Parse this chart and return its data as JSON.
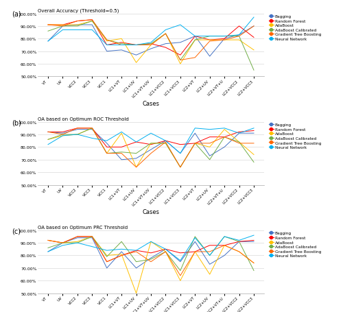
{
  "cases": [
    "VT",
    "UV",
    "VCC2",
    "VCC3",
    "VCC1",
    "LC1+VT",
    "LC1+UV",
    "LC1+VT+UV",
    "LC1+VCC2",
    "LC1+VCC3",
    "LC2+VT",
    "LC2+UV",
    "LC2+VT+U",
    "LC2+VCC2",
    "LC2+VCC3"
  ],
  "subplot_titles": [
    "Overall Accuracy (Threshold=0.5)",
    "OA based on Optimum ROC Threshold",
    "OA based on Optimum PRC Threshold"
  ],
  "subplot_labels": [
    "(a)",
    "(b)",
    "(c)"
  ],
  "legend_labels": [
    "Bagging",
    "Random Forest",
    "AdaBoost",
    "AdaBoost Calibrated",
    "Gradient Tree Boosting",
    "Neural Network"
  ],
  "colors": [
    "#4472C4",
    "#FF0000",
    "#FFC000",
    "#70AD47",
    "#FF6600",
    "#00B0F0"
  ],
  "xlabel": "Cases",
  "ylim": [
    0.5,
    1.0
  ],
  "yticks": [
    0.5,
    0.6,
    0.7,
    0.8,
    0.9,
    1.0
  ],
  "ytick_labels": [
    "50.00%",
    "60.00%",
    "70.00%",
    "80.00%",
    "90.00%",
    "100.00%"
  ],
  "data_a": {
    "Bagging": [
      0.78,
      0.9,
      0.91,
      0.91,
      0.7,
      0.71,
      0.67,
      0.72,
      0.76,
      0.77,
      0.82,
      0.66,
      0.8,
      0.83,
      0.9
    ],
    "Random Forest": [
      0.91,
      0.91,
      0.94,
      0.95,
      0.75,
      0.77,
      0.75,
      0.76,
      0.73,
      0.67,
      0.82,
      0.79,
      0.8,
      0.9,
      0.81
    ],
    "AdaBoost": [
      0.91,
      0.91,
      0.91,
      0.94,
      0.78,
      0.8,
      0.61,
      0.75,
      0.84,
      0.6,
      0.79,
      0.79,
      0.79,
      0.79,
      0.71
    ],
    "AdaBoost Calibrated": [
      0.86,
      0.9,
      0.9,
      0.94,
      0.79,
      0.76,
      0.75,
      0.76,
      0.84,
      0.63,
      0.79,
      0.82,
      0.82,
      0.82,
      0.55
    ],
    "Gradient Tree Boosting": [
      0.91,
      0.9,
      0.94,
      0.95,
      0.79,
      0.75,
      0.75,
      0.75,
      0.84,
      0.63,
      0.65,
      0.78,
      0.79,
      0.82,
      0.9
    ],
    "Neural Network": [
      0.78,
      0.87,
      0.87,
      0.87,
      0.75,
      0.75,
      0.75,
      0.77,
      0.87,
      0.91,
      0.82,
      0.82,
      0.82,
      0.83,
      0.97
    ]
  },
  "data_b": {
    "Bagging": [
      0.92,
      0.91,
      0.94,
      0.94,
      0.83,
      0.7,
      0.71,
      0.78,
      0.85,
      0.75,
      0.91,
      0.73,
      0.8,
      0.91,
      0.91
    ],
    "Random Forest": [
      0.92,
      0.92,
      0.95,
      0.95,
      0.8,
      0.8,
      0.84,
      0.82,
      0.85,
      0.82,
      0.83,
      0.88,
      0.88,
      0.92,
      0.93
    ],
    "AdaBoost": [
      0.86,
      0.89,
      0.9,
      0.95,
      0.75,
      0.91,
      0.64,
      0.83,
      0.83,
      0.64,
      0.83,
      0.8,
      0.94,
      0.84,
      0.74
    ],
    "AdaBoost Calibrated": [
      0.86,
      0.9,
      0.9,
      0.95,
      0.75,
      0.76,
      0.75,
      0.83,
      0.83,
      0.64,
      0.83,
      0.7,
      0.88,
      0.84,
      0.68
    ],
    "Gradient Tree Boosting": [
      0.92,
      0.9,
      0.95,
      0.95,
      0.75,
      0.75,
      0.64,
      0.75,
      0.84,
      0.64,
      0.83,
      0.83,
      0.88,
      0.83,
      0.83
    ],
    "Neural Network": [
      0.82,
      0.89,
      0.9,
      0.87,
      0.85,
      0.92,
      0.84,
      0.91,
      0.85,
      0.75,
      0.95,
      0.94,
      0.95,
      0.91,
      0.95
    ]
  },
  "data_c": {
    "Bagging": [
      0.83,
      0.9,
      0.94,
      0.94,
      0.7,
      0.83,
      0.7,
      0.78,
      0.85,
      0.75,
      0.91,
      0.73,
      0.8,
      0.91,
      0.91
    ],
    "Random Forest": [
      0.92,
      0.9,
      0.95,
      0.95,
      0.75,
      0.8,
      0.84,
      0.82,
      0.85,
      0.82,
      0.83,
      0.88,
      0.88,
      0.91,
      0.92
    ],
    "AdaBoost": [
      0.92,
      0.9,
      0.91,
      0.95,
      0.8,
      0.81,
      0.5,
      0.91,
      0.83,
      0.6,
      0.83,
      0.65,
      0.88,
      0.83,
      0.74
    ],
    "AdaBoost Calibrated": [
      0.86,
      0.9,
      0.9,
      0.95,
      0.79,
      0.91,
      0.75,
      0.77,
      0.83,
      0.68,
      0.95,
      0.8,
      0.95,
      0.91,
      0.68
    ],
    "Gradient Tree Boosting": [
      0.92,
      0.9,
      0.95,
      0.95,
      0.75,
      0.8,
      0.83,
      0.75,
      0.83,
      0.64,
      0.83,
      0.83,
      0.88,
      0.83,
      0.74
    ],
    "Neural Network": [
      0.83,
      0.88,
      0.9,
      0.87,
      0.84,
      0.85,
      0.84,
      0.91,
      0.85,
      0.76,
      0.94,
      0.8,
      0.95,
      0.92,
      0.96
    ]
  }
}
